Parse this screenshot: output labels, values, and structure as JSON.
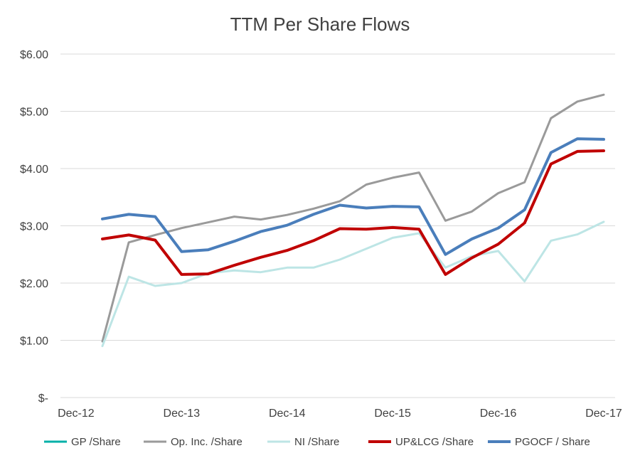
{
  "chart_data": {
    "type": "line",
    "title": "TTM Per Share Flows",
    "xlabel": "",
    "ylabel": "",
    "x_tick_labels": [
      "Dec-12",
      "Dec-13",
      "Dec-14",
      "Dec-15",
      "Dec-16",
      "Dec-17"
    ],
    "y_tick_labels": [
      "$-",
      "$1.00",
      "$2.00",
      "$3.00",
      "$4.00",
      "$5.00",
      "$6.00"
    ],
    "ylim": [
      0,
      6
    ],
    "grid": true,
    "legend_position": "bottom",
    "x": [
      "Mar-13",
      "Jun-13",
      "Sep-13",
      "Dec-13",
      "Mar-14",
      "Jun-14",
      "Sep-14",
      "Dec-14",
      "Mar-15",
      "Jun-15",
      "Sep-15",
      "Dec-15",
      "Mar-16",
      "Jun-16",
      "Sep-16",
      "Dec-16",
      "Mar-17",
      "Jun-17",
      "Sep-17",
      "Dec-17"
    ],
    "series": [
      {
        "name": "GP /Share",
        "color": "#00B0A8",
        "width": 2.5,
        "values": [
          null,
          null,
          null,
          null,
          null,
          null,
          null,
          null,
          null,
          null,
          null,
          null,
          null,
          null,
          null,
          null,
          null,
          null,
          null,
          null
        ]
      },
      {
        "name": "Op. Inc. /Share",
        "color": "#9A9A9A",
        "width": 3,
        "values": [
          0.98,
          2.71,
          2.84,
          2.96,
          3.06,
          3.16,
          3.11,
          3.19,
          3.3,
          3.43,
          3.72,
          3.84,
          3.93,
          3.09,
          3.25,
          3.57,
          3.76,
          4.88,
          5.17,
          5.29
        ]
      },
      {
        "name": "NI /Share",
        "color": "#BDE5E5",
        "width": 3,
        "values": [
          0.9,
          2.11,
          1.95,
          2.0,
          2.17,
          2.22,
          2.19,
          2.27,
          2.27,
          2.41,
          2.6,
          2.79,
          2.87,
          2.27,
          2.47,
          2.56,
          2.03,
          2.74,
          2.85,
          3.07
        ]
      },
      {
        "name": "UP&LCG /Share",
        "color": "#C00000",
        "width": 4,
        "values": [
          2.77,
          2.84,
          2.75,
          2.15,
          2.16,
          2.31,
          2.45,
          2.57,
          2.74,
          2.95,
          2.94,
          2.97,
          2.94,
          2.15,
          2.44,
          2.68,
          3.05,
          4.08,
          4.3,
          4.31
        ]
      },
      {
        "name": "PGOCF / Share",
        "color": "#4A7EBB",
        "width": 4,
        "values": [
          3.12,
          3.2,
          3.16,
          2.55,
          2.58,
          2.73,
          2.9,
          3.01,
          3.2,
          3.36,
          3.31,
          3.34,
          3.33,
          2.5,
          2.77,
          2.96,
          3.28,
          4.28,
          4.52,
          4.51
        ]
      }
    ],
    "colors": {
      "gridline": "#D9D9D9",
      "axis_text": "#404040",
      "background": "#FFFFFF"
    }
  }
}
